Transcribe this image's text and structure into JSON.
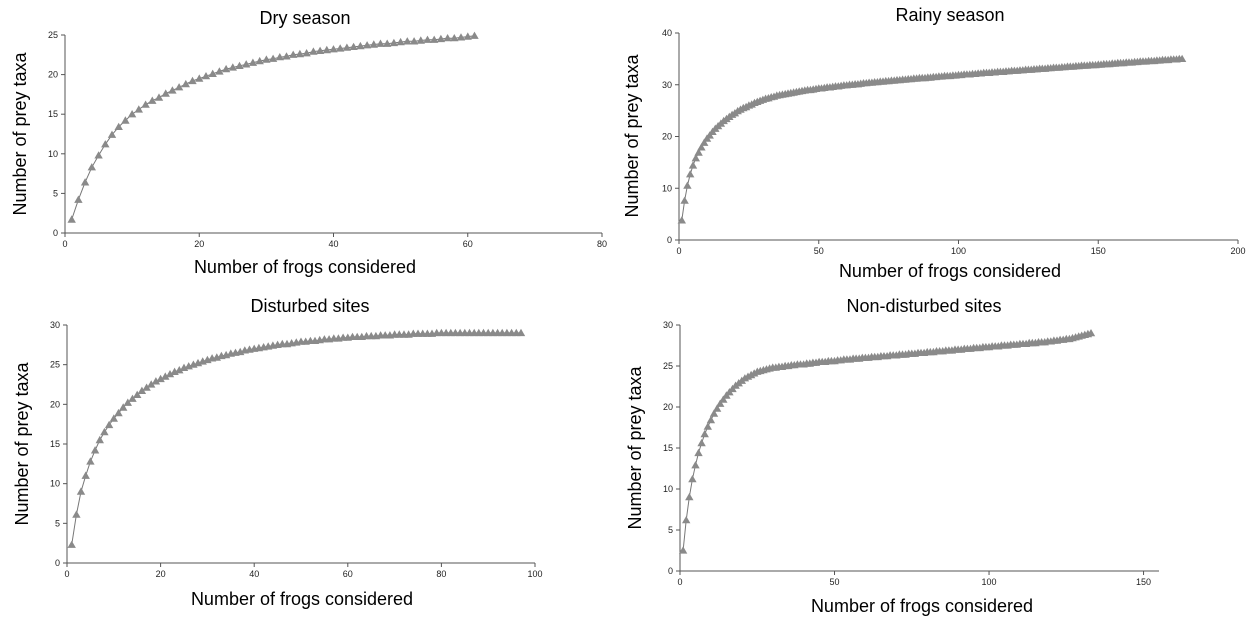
{
  "colors": {
    "marker": "#8a8a8a",
    "line": "#777777",
    "axis": "#555555"
  },
  "chart_data": [
    {
      "type": "line",
      "title": "Dry season",
      "xlabel": "Number of frogs considered",
      "ylabel": "Number of prey taxa",
      "xlim": [
        0,
        80
      ],
      "ylim": [
        0,
        25
      ],
      "xticks": [
        "0",
        "20",
        "40",
        "60",
        "80"
      ],
      "yticks": [
        "0",
        "5",
        "10",
        "15",
        "20",
        "25"
      ],
      "marker": "triangle",
      "series": [
        {
          "x": [
            1,
            2,
            3,
            4,
            5,
            6,
            7,
            8,
            9,
            10,
            11,
            12,
            13,
            14,
            15,
            16,
            17,
            18,
            19,
            20,
            21,
            22,
            23,
            24,
            25,
            26,
            27,
            28,
            29,
            30,
            31,
            32,
            33,
            34,
            35,
            36,
            37,
            38,
            39,
            40,
            41,
            42,
            43,
            44,
            45,
            46,
            47,
            48,
            49,
            50,
            51,
            52,
            53,
            54,
            55,
            56,
            57,
            58,
            59,
            60,
            61
          ],
          "y": [
            1.7,
            4.2,
            6.4,
            8.3,
            9.8,
            11.2,
            12.4,
            13.4,
            14.2,
            15.0,
            15.6,
            16.2,
            16.7,
            17.1,
            17.6,
            18.0,
            18.4,
            18.8,
            19.2,
            19.5,
            19.8,
            20.1,
            20.4,
            20.7,
            20.9,
            21.1,
            21.3,
            21.5,
            21.7,
            21.9,
            22.0,
            22.2,
            22.3,
            22.5,
            22.6,
            22.7,
            22.9,
            23.0,
            23.1,
            23.2,
            23.3,
            23.4,
            23.5,
            23.6,
            23.7,
            23.8,
            23.9,
            23.9,
            24.0,
            24.1,
            24.2,
            24.2,
            24.3,
            24.4,
            24.4,
            24.5,
            24.6,
            24.6,
            24.7,
            24.8,
            24.9
          ]
        }
      ]
    },
    {
      "type": "line",
      "title": "Rainy season",
      "xlabel": "Number of frogs considered",
      "ylabel": "Number of prey taxa",
      "xlim": [
        0,
        200
      ],
      "ylim": [
        0,
        40
      ],
      "xticks": [
        "0",
        "50",
        "100",
        "150",
        "200"
      ],
      "yticks": [
        "0",
        "10",
        "20",
        "30",
        "40"
      ],
      "marker": "triangle",
      "series": [
        {
          "x": [
            1,
            2,
            3,
            4,
            5,
            6,
            7,
            8,
            9,
            10,
            11,
            12,
            13,
            14,
            15,
            16,
            17,
            18,
            19,
            20,
            21,
            22,
            23,
            24,
            25,
            26,
            27,
            28,
            29,
            30,
            31,
            32,
            33,
            34,
            35,
            36,
            37,
            38,
            39,
            40,
            41,
            42,
            43,
            44,
            45,
            46,
            47,
            48,
            49,
            50,
            51,
            52,
            53,
            54,
            55,
            56,
            57,
            58,
            59,
            60,
            61,
            62,
            63,
            64,
            65,
            66,
            67,
            68,
            69,
            70,
            71,
            72,
            73,
            74,
            75,
            76,
            77,
            78,
            79,
            80,
            81,
            82,
            83,
            84,
            85,
            86,
            87,
            88,
            89,
            90,
            91,
            92,
            93,
            94,
            95,
            96,
            97,
            98,
            99,
            100,
            101,
            102,
            103,
            104,
            105,
            106,
            107,
            108,
            109,
            110,
            111,
            112,
            113,
            114,
            115,
            116,
            117,
            118,
            119,
            120,
            121,
            122,
            123,
            124,
            125,
            126,
            127,
            128,
            129,
            130,
            131,
            132,
            133,
            134,
            135,
            136,
            137,
            138,
            139,
            140,
            141,
            142,
            143,
            144,
            145,
            146,
            147,
            148,
            149,
            150,
            151,
            152,
            153,
            154,
            155,
            156,
            157,
            158,
            159,
            160,
            161,
            162,
            163,
            164,
            165,
            166,
            167,
            168,
            169,
            170,
            171,
            172,
            173,
            174,
            175,
            176,
            177,
            178,
            179,
            180
          ],
          "y": [
            3.8,
            7.6,
            10.5,
            12.7,
            14.4,
            15.8,
            16.9,
            17.9,
            18.8,
            19.6,
            20.2,
            20.9,
            21.5,
            22.0,
            22.5,
            23.0,
            23.4,
            23.8,
            24.2,
            24.5,
            24.9,
            25.2,
            25.5,
            25.7,
            26.0,
            26.2,
            26.5,
            26.7,
            26.9,
            27.1,
            27.3,
            27.4,
            27.6,
            27.7,
            27.9,
            28.0,
            28.1,
            28.2,
            28.3,
            28.4,
            28.5,
            28.6,
            28.7,
            28.8,
            28.9,
            29.0,
            29.0,
            29.1,
            29.2,
            29.3,
            29.3,
            29.4,
            29.5,
            29.5,
            29.6,
            29.7,
            29.7,
            29.8,
            29.9,
            29.9,
            30.0,
            30.0,
            30.1,
            30.1,
            30.2,
            30.3,
            30.3,
            30.4,
            30.4,
            30.5,
            30.5,
            30.6,
            30.6,
            30.7,
            30.7,
            30.8,
            30.8,
            30.9,
            30.9,
            31.0,
            31.0,
            31.1,
            31.1,
            31.2,
            31.2,
            31.3,
            31.3,
            31.3,
            31.4,
            31.4,
            31.5,
            31.5,
            31.6,
            31.6,
            31.7,
            31.7,
            31.7,
            31.8,
            31.8,
            31.9,
            31.9,
            32.0,
            32.0,
            32.0,
            32.1,
            32.1,
            32.2,
            32.2,
            32.3,
            32.3,
            32.3,
            32.4,
            32.4,
            32.5,
            32.5,
            32.5,
            32.6,
            32.6,
            32.7,
            32.7,
            32.7,
            32.8,
            32.8,
            32.9,
            32.9,
            32.9,
            33.0,
            33.0,
            33.1,
            33.1,
            33.1,
            33.2,
            33.2,
            33.3,
            33.3,
            33.3,
            33.4,
            33.4,
            33.5,
            33.5,
            33.5,
            33.6,
            33.6,
            33.7,
            33.7,
            33.7,
            33.8,
            33.8,
            33.8,
            33.9,
            33.9,
            34.0,
            34.0,
            34.0,
            34.1,
            34.1,
            34.2,
            34.2,
            34.2,
            34.3,
            34.3,
            34.3,
            34.4,
            34.4,
            34.5,
            34.5,
            34.5,
            34.6,
            34.6,
            34.6,
            34.7,
            34.7,
            34.8,
            34.8,
            34.8,
            34.9,
            34.9,
            34.9,
            35.0,
            35.0
          ]
        }
      ]
    },
    {
      "type": "line",
      "title": "Disturbed sites",
      "xlabel": "Number of frogs considered",
      "ylabel": "Number of prey taxa",
      "xlim": [
        0,
        100
      ],
      "ylim": [
        0,
        30
      ],
      "xticks": [
        "0",
        "20",
        "40",
        "60",
        "80",
        "100"
      ],
      "yticks": [
        "0",
        "5",
        "10",
        "15",
        "20",
        "25",
        "30"
      ],
      "marker": "triangle",
      "series": [
        {
          "x": [
            1,
            2,
            3,
            4,
            5,
            6,
            7,
            8,
            9,
            10,
            11,
            12,
            13,
            14,
            15,
            16,
            17,
            18,
            19,
            20,
            21,
            22,
            23,
            24,
            25,
            26,
            27,
            28,
            29,
            30,
            31,
            32,
            33,
            34,
            35,
            36,
            37,
            38,
            39,
            40,
            41,
            42,
            43,
            44,
            45,
            46,
            47,
            48,
            49,
            50,
            51,
            52,
            53,
            54,
            55,
            56,
            57,
            58,
            59,
            60,
            61,
            62,
            63,
            64,
            65,
            66,
            67,
            68,
            69,
            70,
            71,
            72,
            73,
            74,
            75,
            76,
            77,
            78,
            79,
            80,
            81,
            82,
            83,
            84,
            85,
            86,
            87,
            88,
            89,
            90,
            91,
            92,
            93,
            94,
            95,
            96,
            97
          ],
          "y": [
            2.3,
            6.1,
            9.0,
            11.0,
            12.8,
            14.2,
            15.5,
            16.5,
            17.4,
            18.2,
            18.9,
            19.6,
            20.2,
            20.7,
            21.2,
            21.7,
            22.1,
            22.5,
            22.9,
            23.2,
            23.5,
            23.8,
            24.1,
            24.3,
            24.6,
            24.8,
            25.0,
            25.2,
            25.4,
            25.6,
            25.8,
            25.9,
            26.1,
            26.2,
            26.4,
            26.5,
            26.6,
            26.8,
            26.9,
            27.0,
            27.1,
            27.2,
            27.3,
            27.4,
            27.5,
            27.6,
            27.6,
            27.7,
            27.8,
            27.9,
            27.9,
            28.0,
            28.0,
            28.1,
            28.2,
            28.2,
            28.3,
            28.3,
            28.4,
            28.4,
            28.5,
            28.5,
            28.5,
            28.6,
            28.6,
            28.6,
            28.7,
            28.7,
            28.7,
            28.8,
            28.8,
            28.8,
            28.8,
            28.9,
            28.9,
            28.9,
            28.9,
            28.9,
            29.0,
            29.0,
            29.0,
            29.0,
            29.0,
            29.0,
            29.0,
            29.0,
            29.0,
            29.0,
            29.0,
            29.0,
            29.0,
            29.0,
            29.0,
            29.0,
            29.0,
            29.0,
            29.0
          ]
        }
      ]
    },
    {
      "type": "line",
      "title": "Non-disturbed sites",
      "xlabel": "Number of frogs considered",
      "ylabel": "Number of prey taxa",
      "xlim": [
        0,
        155
      ],
      "ylim": [
        0,
        30
      ],
      "xticks": [
        "0",
        "50",
        "100",
        "150"
      ],
      "yticks": [
        "0",
        "5",
        "10",
        "15",
        "20",
        "25",
        "30"
      ],
      "marker": "triangle",
      "series": [
        {
          "x": [
            1,
            2,
            3,
            4,
            5,
            6,
            7,
            8,
            9,
            10,
            11,
            12,
            13,
            14,
            15,
            16,
            17,
            18,
            19,
            20,
            21,
            22,
            23,
            24,
            25,
            26,
            27,
            28,
            29,
            30,
            31,
            32,
            33,
            34,
            35,
            36,
            37,
            38,
            39,
            40,
            41,
            42,
            43,
            44,
            45,
            46,
            47,
            48,
            49,
            50,
            51,
            52,
            53,
            54,
            55,
            56,
            57,
            58,
            59,
            60,
            61,
            62,
            63,
            64,
            65,
            66,
            67,
            68,
            69,
            70,
            71,
            72,
            73,
            74,
            75,
            76,
            77,
            78,
            79,
            80,
            81,
            82,
            83,
            84,
            85,
            86,
            87,
            88,
            89,
            90,
            91,
            92,
            93,
            94,
            95,
            96,
            97,
            98,
            99,
            100,
            101,
            102,
            103,
            104,
            105,
            106,
            107,
            108,
            109,
            110,
            111,
            112,
            113,
            114,
            115,
            116,
            117,
            118,
            119,
            120,
            121,
            122,
            123,
            124,
            125,
            126,
            127,
            128,
            129,
            130,
            131,
            132,
            133
          ],
          "y": [
            2.5,
            6.2,
            9.0,
            11.2,
            12.9,
            14.4,
            15.6,
            16.7,
            17.6,
            18.4,
            19.2,
            19.8,
            20.4,
            20.9,
            21.4,
            21.8,
            22.2,
            22.6,
            22.9,
            23.2,
            23.5,
            23.7,
            23.9,
            24.1,
            24.3,
            24.4,
            24.5,
            24.6,
            24.7,
            24.8,
            24.8,
            24.9,
            24.9,
            25.0,
            25.0,
            25.1,
            25.1,
            25.2,
            25.2,
            25.2,
            25.3,
            25.3,
            25.4,
            25.4,
            25.5,
            25.5,
            25.5,
            25.6,
            25.6,
            25.6,
            25.7,
            25.7,
            25.8,
            25.8,
            25.8,
            25.9,
            25.9,
            25.9,
            26.0,
            26.0,
            26.0,
            26.1,
            26.1,
            26.1,
            26.2,
            26.2,
            26.2,
            26.3,
            26.3,
            26.3,
            26.4,
            26.4,
            26.4,
            26.5,
            26.5,
            26.5,
            26.6,
            26.6,
            26.6,
            26.7,
            26.7,
            26.7,
            26.8,
            26.8,
            26.8,
            26.9,
            26.9,
            26.9,
            27.0,
            27.0,
            27.0,
            27.1,
            27.1,
            27.1,
            27.2,
            27.2,
            27.2,
            27.3,
            27.3,
            27.3,
            27.4,
            27.4,
            27.4,
            27.5,
            27.5,
            27.5,
            27.6,
            27.6,
            27.6,
            27.7,
            27.7,
            27.7,
            27.8,
            27.8,
            27.8,
            27.9,
            27.9,
            27.9,
            28.0,
            28.0,
            28.1,
            28.1,
            28.2,
            28.2,
            28.3,
            28.3,
            28.4,
            28.5,
            28.6,
            28.7,
            28.8,
            28.9,
            29.0
          ]
        }
      ]
    }
  ]
}
